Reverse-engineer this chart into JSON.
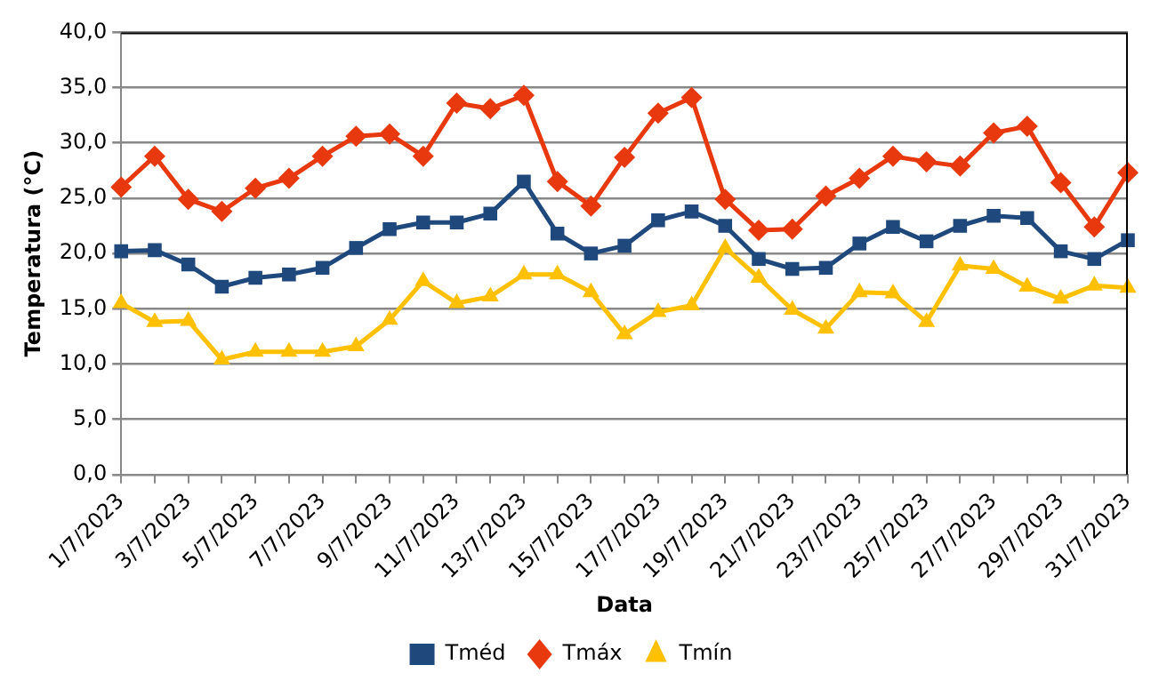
{
  "chart_data": {
    "type": "line",
    "xlabel": "Data",
    "ylabel": "Temperatura (°C)",
    "categories": [
      "1/7/2023",
      null,
      "3/7/2023",
      null,
      "5/7/2023",
      null,
      "7/7/2023",
      null,
      "9/7/2023",
      null,
      "11/7/2023",
      null,
      "13/7/2023",
      null,
      "15/7/2023",
      null,
      "17/7/2023",
      null,
      "19/7/2023",
      null,
      "21/7/2023",
      null,
      "23/7/2023",
      null,
      "25/7/2023",
      null,
      "27/7/2023",
      null,
      "29/7/2023",
      null,
      "31/7/2023"
    ],
    "series": [
      {
        "name": "Tméd",
        "color": "#1f497d",
        "marker": "square",
        "values": [
          20.2,
          20.3,
          19.0,
          17.0,
          17.8,
          18.1,
          18.7,
          20.5,
          22.2,
          22.8,
          22.8,
          23.6,
          26.5,
          21.8,
          20.0,
          20.7,
          23.0,
          23.8,
          22.5,
          19.5,
          18.6,
          18.7,
          20.9,
          22.4,
          21.1,
          22.5,
          23.4,
          23.2,
          20.2,
          19.5,
          21.2
        ]
      },
      {
        "name": "Tmáx",
        "color": "#e8380d",
        "marker": "diamond",
        "values": [
          26.0,
          28.8,
          24.9,
          23.8,
          25.9,
          26.8,
          28.8,
          30.6,
          30.8,
          28.8,
          33.6,
          33.1,
          34.3,
          26.5,
          24.3,
          28.7,
          32.7,
          34.1,
          24.9,
          22.1,
          22.2,
          25.2,
          26.8,
          28.8,
          28.3,
          27.9,
          30.9,
          31.5,
          26.4,
          22.4,
          27.3
        ]
      },
      {
        "name": "Tmín",
        "color": "#ffc000",
        "marker": "triangle",
        "values": [
          15.5,
          13.8,
          13.9,
          10.4,
          11.1,
          11.1,
          11.1,
          11.6,
          14.0,
          17.5,
          15.5,
          16.1,
          18.1,
          18.1,
          16.5,
          12.7,
          14.7,
          15.3,
          20.5,
          17.8,
          14.9,
          13.2,
          16.5,
          16.4,
          13.8,
          18.9,
          18.6,
          17.0,
          15.9,
          17.1,
          16.9
        ]
      }
    ],
    "ylim": [
      0,
      40
    ],
    "yticks": [
      {
        "value": 0,
        "label": "0,0"
      },
      {
        "value": 5,
        "label": "5,0"
      },
      {
        "value": 10,
        "label": "10,0"
      },
      {
        "value": 15,
        "label": "15,0"
      },
      {
        "value": 20,
        "label": "20,0"
      },
      {
        "value": 25,
        "label": "25,0"
      },
      {
        "value": 30,
        "label": "30,0"
      },
      {
        "value": 35,
        "label": "35,0"
      },
      {
        "value": 40,
        "label": "40,0"
      }
    ],
    "grid": "y",
    "legend": "bottom",
    "line_style": "solid"
  }
}
